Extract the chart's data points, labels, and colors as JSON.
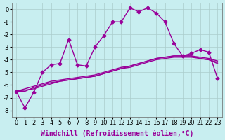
{
  "background_color": "#c8eef0",
  "grid_color": "#aacccc",
  "line_color": "#990099",
  "xlabel": "Windchill (Refroidissement éolien,°C)",
  "xlabel_fontsize": 7,
  "xtick_fontsize": 6,
  "ytick_fontsize": 6,
  "ylim": [
    -8.5,
    0.5
  ],
  "xlim": [
    -0.5,
    23.5
  ],
  "yticks": [
    0,
    -1,
    -2,
    -3,
    -4,
    -5,
    -6,
    -7,
    -8
  ],
  "xticks": [
    0,
    1,
    2,
    3,
    4,
    5,
    6,
    7,
    8,
    9,
    10,
    11,
    12,
    13,
    14,
    15,
    16,
    17,
    18,
    19,
    20,
    21,
    22,
    23
  ],
  "series": [
    {
      "x": [
        0,
        1,
        2,
        3,
        4,
        5,
        6,
        7,
        8,
        9,
        10,
        11,
        12,
        13,
        14,
        15,
        16,
        17,
        18,
        19,
        20,
        21,
        22,
        23
      ],
      "y": [
        -6.5,
        -7.8,
        -6.6,
        -5.0,
        -4.4,
        -4.3,
        -2.4,
        -4.4,
        -4.5,
        -3.0,
        -2.1,
        -1.0,
        -1.0,
        0.1,
        -0.2,
        0.1,
        -0.3,
        -1.0,
        -2.7,
        -3.7,
        -3.5,
        -3.2,
        -3.4,
        -5.5
      ],
      "marker": "D",
      "markersize": 2.5,
      "linewidth": 1.0
    },
    {
      "x": [
        0,
        1,
        2,
        3,
        4,
        5,
        6,
        7,
        8,
        9,
        10,
        11,
        12,
        13,
        14,
        15,
        16,
        17,
        18,
        19,
        20,
        21,
        22,
        23
      ],
      "y": [
        -6.5,
        -6.5,
        -6.2,
        -6.0,
        -5.8,
        -5.7,
        -5.6,
        -5.5,
        -5.4,
        -5.3,
        -5.1,
        -4.9,
        -4.7,
        -4.5,
        -4.3,
        -4.1,
        -3.9,
        -3.8,
        -3.7,
        -3.7,
        -3.7,
        -3.8,
        -3.9,
        -4.1
      ],
      "marker": null,
      "markersize": 0,
      "linewidth": 1.0
    },
    {
      "x": [
        0,
        1,
        2,
        3,
        4,
        5,
        6,
        7,
        8,
        9,
        10,
        11,
        12,
        13,
        14,
        15,
        16,
        17,
        18,
        19,
        20,
        21,
        22,
        23
      ],
      "y": [
        -6.5,
        -6.4,
        -6.3,
        -6.1,
        -5.9,
        -5.7,
        -5.6,
        -5.5,
        -5.4,
        -5.3,
        -5.1,
        -4.9,
        -4.7,
        -4.6,
        -4.4,
        -4.2,
        -4.0,
        -3.9,
        -3.8,
        -3.8,
        -3.8,
        -3.9,
        -4.0,
        -4.2
      ],
      "marker": null,
      "markersize": 0,
      "linewidth": 1.0
    },
    {
      "x": [
        0,
        1,
        2,
        3,
        4,
        5,
        6,
        7,
        8,
        9,
        10,
        11,
        12,
        13,
        14,
        15,
        16,
        17,
        18,
        19,
        20,
        21,
        22,
        23
      ],
      "y": [
        -6.5,
        -6.3,
        -6.1,
        -5.9,
        -5.7,
        -5.6,
        -5.5,
        -5.4,
        -5.3,
        -5.2,
        -5.0,
        -4.8,
        -4.6,
        -4.5,
        -4.3,
        -4.1,
        -3.9,
        -3.8,
        -3.7,
        -3.7,
        -3.7,
        -3.9,
        -4.0,
        -4.3
      ],
      "marker": null,
      "markersize": 0,
      "linewidth": 1.0
    }
  ]
}
